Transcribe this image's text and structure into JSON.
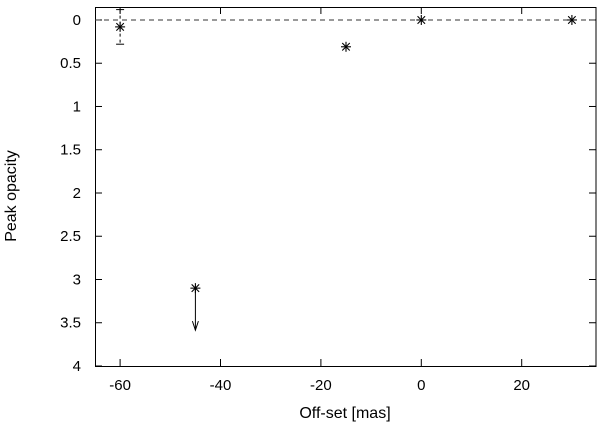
{
  "chart_data": {
    "type": "scatter",
    "title": "",
    "xlabel": "Off-set [mas]",
    "ylabel": "Peak opacity",
    "xlim": [
      -65,
      35
    ],
    "ylim": [
      -0.15,
      4
    ],
    "y_inverted": true,
    "grid": false,
    "x_ticks": [
      -60,
      -40,
      -20,
      0,
      20
    ],
    "x_tick_labels": [
      "-60",
      "-40",
      "-20",
      "0",
      "20"
    ],
    "y_ticks": [
      0,
      0.5,
      1,
      1.5,
      2,
      2.5,
      3,
      3.5,
      4
    ],
    "y_tick_labels": [
      "0",
      "0.5",
      "1",
      "1.5",
      "2",
      "2.5",
      "3",
      "3.5",
      "4"
    ],
    "reference_line": {
      "y": 0,
      "style": "dashed"
    },
    "points": [
      {
        "x": -60,
        "y": 0.08,
        "error_low": -0.12,
        "error_high": 0.28
      },
      {
        "x": -45,
        "y": 3.1,
        "lower_limit": true
      },
      {
        "x": -15,
        "y": 0.31
      },
      {
        "x": 0,
        "y": 0.0
      },
      {
        "x": 30,
        "y": 0.0
      }
    ]
  }
}
